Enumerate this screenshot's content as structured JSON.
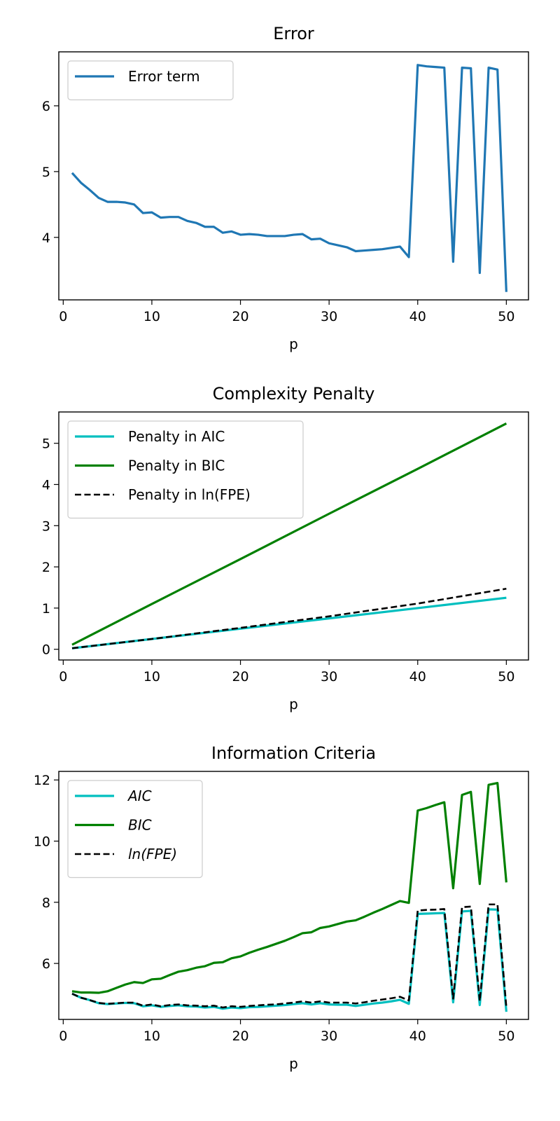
{
  "chart_data": [
    {
      "type": "line",
      "title": "Error",
      "xlabel": "p",
      "ylabel": "",
      "xlim": [
        -0.5,
        52.5
      ],
      "ylim": [
        3.05,
        6.82
      ],
      "xticks": [
        0,
        10,
        20,
        30,
        40,
        50
      ],
      "yticks": [
        4,
        5,
        6
      ],
      "legend_position": "upper-left",
      "grid": false,
      "x": [
        1,
        2,
        3,
        4,
        5,
        6,
        7,
        8,
        9,
        10,
        11,
        12,
        13,
        14,
        15,
        16,
        17,
        18,
        19,
        20,
        21,
        22,
        23,
        24,
        25,
        26,
        27,
        28,
        29,
        30,
        31,
        32,
        33,
        34,
        35,
        36,
        37,
        38,
        39,
        40,
        41,
        42,
        43,
        44,
        45,
        46,
        47,
        48,
        49,
        50
      ],
      "series": [
        {
          "name": "Error term",
          "color": "#1f77b4",
          "dash": "solid",
          "values": [
            4.98,
            4.83,
            4.72,
            4.6,
            4.54,
            4.54,
            4.53,
            4.5,
            4.37,
            4.38,
            4.3,
            4.31,
            4.31,
            4.25,
            4.22,
            4.16,
            4.16,
            4.07,
            4.09,
            4.04,
            4.05,
            4.04,
            4.02,
            4.02,
            4.02,
            4.04,
            4.05,
            3.97,
            3.98,
            3.91,
            3.88,
            3.85,
            3.79,
            3.8,
            3.81,
            3.82,
            3.84,
            3.86,
            3.7,
            6.62,
            6.6,
            6.59,
            6.58,
            3.63,
            6.58,
            6.57,
            3.46,
            6.58,
            6.55,
            3.17
          ]
        }
      ]
    },
    {
      "type": "line",
      "title": "Complexity Penalty",
      "xlabel": "p",
      "ylabel": "",
      "xlim": [
        -0.5,
        52.5
      ],
      "ylim": [
        -0.26,
        5.76
      ],
      "xticks": [
        0,
        10,
        20,
        30,
        40,
        50
      ],
      "yticks": [
        0,
        1,
        2,
        3,
        4,
        5
      ],
      "legend_position": "upper-left",
      "grid": false,
      "x": [
        1,
        10,
        20,
        30,
        40,
        50
      ],
      "series": [
        {
          "name": "Penalty in AIC",
          "color": "#00bfbf",
          "dash": "solid",
          "values": [
            0.025,
            0.25,
            0.5,
            0.75,
            1.0,
            1.25
          ]
        },
        {
          "name": "Penalty in BIC",
          "color": "#008000",
          "dash": "solid",
          "values": [
            0.11,
            1.1,
            2.19,
            3.29,
            4.38,
            5.48
          ]
        },
        {
          "name": "Penalty in ln(FPE)",
          "color": "#000000",
          "dash": "dashed",
          "values": [
            0.025,
            0.25,
            0.52,
            0.8,
            1.11,
            1.47
          ]
        }
      ]
    },
    {
      "type": "line",
      "title": "Information Criteria",
      "xlabel": "p",
      "ylabel": "",
      "xlim": [
        -0.5,
        52.5
      ],
      "ylim": [
        4.17,
        12.28
      ],
      "xticks": [
        0,
        10,
        20,
        30,
        40,
        50
      ],
      "yticks": [
        6,
        8,
        10,
        12
      ],
      "legend_position": "upper-left",
      "grid": false,
      "x": [
        1,
        2,
        3,
        4,
        5,
        6,
        7,
        8,
        9,
        10,
        11,
        12,
        13,
        14,
        15,
        16,
        17,
        18,
        19,
        20,
        21,
        22,
        23,
        24,
        25,
        26,
        27,
        28,
        29,
        30,
        31,
        32,
        33,
        34,
        35,
        36,
        37,
        38,
        39,
        40,
        41,
        42,
        43,
        44,
        45,
        46,
        47,
        48,
        49,
        50
      ],
      "series": [
        {
          "name": "AIC",
          "color": "#00bfbf",
          "dash": "solid",
          "values": [
            5.01,
            4.88,
            4.8,
            4.7,
            4.67,
            4.69,
            4.71,
            4.7,
            4.6,
            4.63,
            4.58,
            4.61,
            4.63,
            4.6,
            4.59,
            4.56,
            4.58,
            4.52,
            4.56,
            4.54,
            4.57,
            4.58,
            4.6,
            4.62,
            4.64,
            4.67,
            4.7,
            4.66,
            4.7,
            4.66,
            4.65,
            4.65,
            4.61,
            4.65,
            4.69,
            4.72,
            4.76,
            4.81,
            4.68,
            7.62,
            7.63,
            7.64,
            7.65,
            4.73,
            7.7,
            7.72,
            4.64,
            7.77,
            7.76,
            4.42
          ]
        },
        {
          "name": "BIC",
          "color": "#008000",
          "dash": "solid",
          "values": [
            5.09,
            5.05,
            5.05,
            5.04,
            5.09,
            5.2,
            5.31,
            5.39,
            5.36,
            5.48,
            5.5,
            5.62,
            5.73,
            5.78,
            5.86,
            5.91,
            6.02,
            6.04,
            6.17,
            6.23,
            6.35,
            6.45,
            6.54,
            6.64,
            6.74,
            6.86,
            6.99,
            7.02,
            7.16,
            7.21,
            7.29,
            7.37,
            7.41,
            7.53,
            7.66,
            7.78,
            7.91,
            8.04,
            7.98,
            11.0,
            11.08,
            11.18,
            11.27,
            8.46,
            11.51,
            11.61,
            8.6,
            11.84,
            11.9,
            8.65
          ]
        },
        {
          "name": "ln(FPE)",
          "color": "#000000",
          "dash": "dashed",
          "values": [
            5.01,
            4.88,
            4.8,
            4.71,
            4.68,
            4.7,
            4.72,
            4.72,
            4.62,
            4.66,
            4.6,
            4.64,
            4.66,
            4.63,
            4.62,
            4.6,
            4.62,
            4.56,
            4.6,
            4.58,
            4.61,
            4.63,
            4.65,
            4.66,
            4.69,
            4.72,
            4.76,
            4.72,
            4.76,
            4.72,
            4.72,
            4.72,
            4.69,
            4.73,
            4.78,
            4.82,
            4.86,
            4.91,
            4.79,
            7.73,
            7.75,
            7.76,
            7.78,
            4.85,
            7.84,
            7.86,
            4.77,
            7.93,
            7.93,
            4.57
          ]
        }
      ]
    }
  ]
}
